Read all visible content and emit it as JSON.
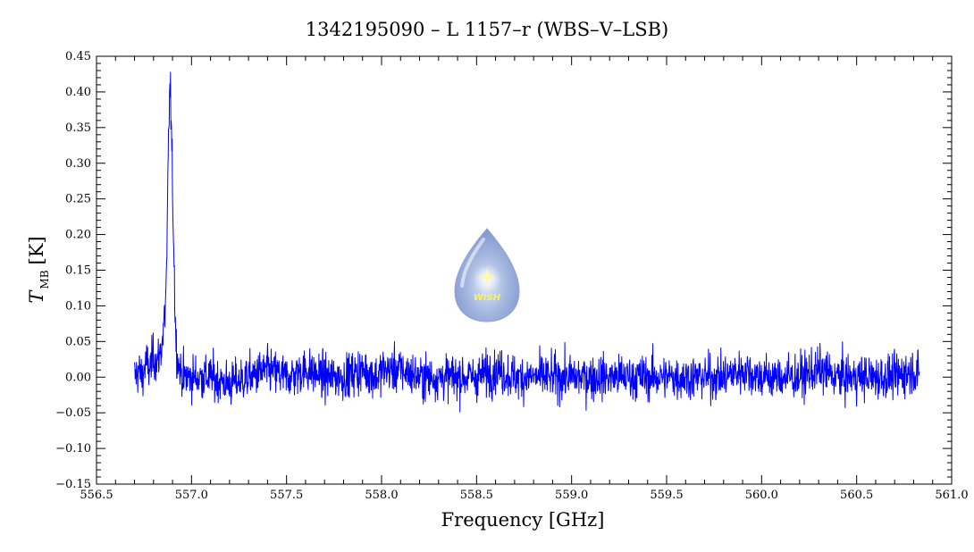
{
  "chart_data": {
    "type": "line",
    "title": "1342195090 – L 1157–r (WBS–V–LSB)",
    "xlabel": "Frequency [GHz]",
    "ylabel_main": "T",
    "ylabel_sub": "MB",
    "ylabel_unit": "[K]",
    "xlim": [
      556.5,
      561.0
    ],
    "ylim": [
      -0.15,
      0.45
    ],
    "xticks": [
      "556.5",
      "557.0",
      "557.5",
      "558.0",
      "558.5",
      "559.0",
      "559.5",
      "560.0",
      "560.5",
      "561.0"
    ],
    "yticks": [
      "−0.15",
      "−0.10",
      "−0.05",
      "0.00",
      "0.05",
      "0.10",
      "0.15",
      "0.20",
      "0.25",
      "0.30",
      "0.35",
      "0.40",
      "0.45"
    ],
    "grid": false,
    "series": [
      {
        "color": "#0000ff",
        "x": [
          556.7,
          556.72,
          556.74,
          556.76,
          556.78,
          556.8,
          556.82,
          556.84,
          556.85,
          556.86,
          556.87,
          556.875,
          556.88,
          556.885,
          556.89,
          556.895,
          556.9,
          556.905,
          556.91,
          556.915,
          556.92,
          556.93,
          556.94,
          556.96,
          556.98,
          557.0,
          557.1,
          557.2,
          557.3,
          557.4,
          557.5,
          557.6,
          557.7,
          557.8,
          557.9,
          557.98,
          558.0,
          558.1,
          558.2,
          558.3,
          558.4,
          558.5,
          558.6,
          558.7,
          558.8,
          558.9,
          559.0,
          559.1,
          559.2,
          559.3,
          559.4,
          559.5,
          559.6,
          559.7,
          559.8,
          559.9,
          560.0,
          560.1,
          560.2,
          560.3,
          560.4,
          560.5,
          560.6,
          560.7,
          560.8,
          560.83
        ],
        "y": [
          0.0,
          0.01,
          0.0,
          0.02,
          0.01,
          0.03,
          0.02,
          0.04,
          0.06,
          0.09,
          0.15,
          0.26,
          0.35,
          0.4,
          0.39,
          0.33,
          0.26,
          0.21,
          0.14,
          0.08,
          0.04,
          0.02,
          0.01,
          0.0,
          0.0,
          0.0,
          0.0,
          -0.01,
          0.0,
          0.01,
          0.0,
          0.01,
          0.0,
          0.0,
          0.01,
          0.0,
          0.01,
          0.01,
          0.0,
          0.0,
          0.0,
          0.0,
          0.01,
          0.0,
          0.0,
          0.0,
          0.0,
          0.0,
          0.0,
          0.0,
          0.0,
          0.0,
          0.0,
          0.0,
          0.0,
          0.01,
          0.0,
          0.0,
          0.0,
          0.01,
          0.0,
          0.0,
          0.0,
          0.0,
          0.01,
          0.0
        ],
        "noise_rms": 0.022
      }
    ]
  },
  "logo": {
    "text": "WISH",
    "icon": "water-drop-logo-icon"
  }
}
